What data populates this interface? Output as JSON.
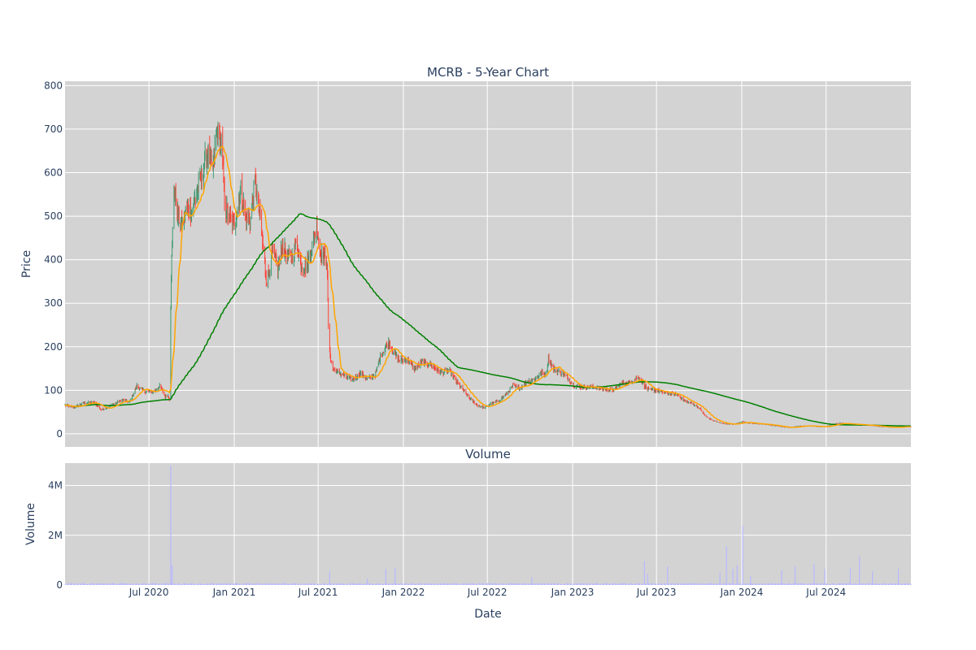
{
  "chart_data": [
    {
      "type": "candlestick",
      "title": "MCRB - 5-Year Chart",
      "ylabel": "Price",
      "ylim": [
        -30,
        810
      ],
      "yticks": [
        0,
        100,
        200,
        300,
        400,
        500,
        600,
        700,
        800
      ],
      "colors": {
        "up": "#3d9970",
        "down": "#ff4136",
        "ma_short": "#ffa500",
        "ma_long": "#008000",
        "plot_bg": "#d3d3d3",
        "grid": "#ffffff"
      },
      "series_keypoints": {
        "close": [
          [
            "2020-01-02",
            66
          ],
          [
            "2020-01-20",
            60
          ],
          [
            "2020-02-10",
            70
          ],
          [
            "2020-03-05",
            72
          ],
          [
            "2020-03-20",
            55
          ],
          [
            "2020-04-10",
            65
          ],
          [
            "2020-05-05",
            78
          ],
          [
            "2020-05-20",
            72
          ],
          [
            "2020-06-05",
            110
          ],
          [
            "2020-06-20",
            98
          ],
          [
            "2020-07-05",
            95
          ],
          [
            "2020-07-15",
            100
          ],
          [
            "2020-07-25",
            110
          ],
          [
            "2020-08-05",
            85
          ],
          [
            "2020-08-10",
            90
          ],
          [
            "2020-08-14",
            80
          ],
          [
            "2020-08-18",
            370
          ],
          [
            "2020-08-24",
            560
          ],
          [
            "2020-09-02",
            500
          ],
          [
            "2020-09-10",
            475
          ],
          [
            "2020-09-20",
            520
          ],
          [
            "2020-10-01",
            510
          ],
          [
            "2020-10-10",
            545
          ],
          [
            "2020-10-25",
            600
          ],
          [
            "2020-11-05",
            650
          ],
          [
            "2020-11-15",
            600
          ],
          [
            "2020-11-25",
            700
          ],
          [
            "2020-12-05",
            660
          ],
          [
            "2020-12-12",
            520
          ],
          [
            "2020-12-20",
            500
          ],
          [
            "2021-01-01",
            480
          ],
          [
            "2021-01-15",
            560
          ],
          [
            "2021-01-25",
            500
          ],
          [
            "2021-02-05",
            490
          ],
          [
            "2021-02-15",
            580
          ],
          [
            "2021-02-25",
            500
          ],
          [
            "2021-03-05",
            420
          ],
          [
            "2021-03-12",
            350
          ],
          [
            "2021-03-25",
            420
          ],
          [
            "2021-04-05",
            380
          ],
          [
            "2021-04-15",
            430
          ],
          [
            "2021-04-25",
            410
          ],
          [
            "2021-05-05",
            400
          ],
          [
            "2021-05-15",
            440
          ],
          [
            "2021-05-25",
            390
          ],
          [
            "2021-06-05",
            380
          ],
          [
            "2021-06-15",
            420
          ],
          [
            "2021-06-28",
            480
          ],
          [
            "2021-07-05",
            420
          ],
          [
            "2021-07-15",
            410
          ],
          [
            "2021-07-20",
            400
          ],
          [
            "2021-07-24",
            200
          ],
          [
            "2021-08-01",
            150
          ],
          [
            "2021-08-15",
            140
          ],
          [
            "2021-09-01",
            130
          ],
          [
            "2021-09-15",
            125
          ],
          [
            "2021-10-01",
            140
          ],
          [
            "2021-10-15",
            125
          ],
          [
            "2021-11-01",
            135
          ],
          [
            "2021-11-15",
            185
          ],
          [
            "2021-12-01",
            210
          ],
          [
            "2021-12-10",
            190
          ],
          [
            "2021-12-20",
            170
          ],
          [
            "2022-01-10",
            170
          ],
          [
            "2022-01-25",
            150
          ],
          [
            "2022-02-10",
            165
          ],
          [
            "2022-02-25",
            160
          ],
          [
            "2022-03-10",
            150
          ],
          [
            "2022-03-25",
            140
          ],
          [
            "2022-04-10",
            145
          ],
          [
            "2022-04-25",
            120
          ],
          [
            "2022-05-10",
            100
          ],
          [
            "2022-05-25",
            80
          ],
          [
            "2022-06-10",
            65
          ],
          [
            "2022-06-25",
            60
          ],
          [
            "2022-07-10",
            70
          ],
          [
            "2022-07-25",
            75
          ],
          [
            "2022-08-10",
            90
          ],
          [
            "2022-08-25",
            110
          ],
          [
            "2022-09-10",
            105
          ],
          [
            "2022-09-25",
            120
          ],
          [
            "2022-10-10",
            125
          ],
          [
            "2022-10-25",
            140
          ],
          [
            "2022-11-05",
            135
          ],
          [
            "2022-11-10",
            175
          ],
          [
            "2022-11-20",
            150
          ],
          [
            "2022-12-05",
            140
          ],
          [
            "2022-12-20",
            130
          ],
          [
            "2023-01-05",
            110
          ],
          [
            "2023-01-20",
            108
          ],
          [
            "2023-02-10",
            108
          ],
          [
            "2023-02-25",
            105
          ],
          [
            "2023-03-15",
            102
          ],
          [
            "2023-03-30",
            100
          ],
          [
            "2023-04-15",
            115
          ],
          [
            "2023-04-30",
            118
          ],
          [
            "2023-05-15",
            125
          ],
          [
            "2023-05-25",
            130
          ],
          [
            "2023-06-05",
            110
          ],
          [
            "2023-06-15",
            100
          ],
          [
            "2023-07-01",
            100
          ],
          [
            "2023-07-15",
            95
          ],
          [
            "2023-08-01",
            92
          ],
          [
            "2023-08-15",
            90
          ],
          [
            "2023-09-01",
            75
          ],
          [
            "2023-09-15",
            70
          ],
          [
            "2023-10-01",
            60
          ],
          [
            "2023-10-15",
            40
          ],
          [
            "2023-11-01",
            30
          ],
          [
            "2023-11-15",
            25
          ],
          [
            "2023-12-01",
            22
          ],
          [
            "2023-12-15",
            22
          ],
          [
            "2024-01-01",
            28
          ],
          [
            "2024-01-15",
            25
          ],
          [
            "2024-02-01",
            23
          ],
          [
            "2024-02-15",
            22
          ],
          [
            "2024-03-01",
            20
          ],
          [
            "2024-03-15",
            18
          ],
          [
            "2024-04-01",
            15
          ],
          [
            "2024-04-15",
            14
          ],
          [
            "2024-05-01",
            18
          ],
          [
            "2024-05-15",
            18
          ],
          [
            "2024-06-01",
            18
          ],
          [
            "2024-06-15",
            16
          ],
          [
            "2024-07-01",
            17
          ],
          [
            "2024-07-15",
            22
          ],
          [
            "2024-08-01",
            25
          ],
          [
            "2024-08-15",
            22
          ],
          [
            "2024-09-01",
            22
          ],
          [
            "2024-09-15",
            20
          ],
          [
            "2024-10-01",
            20
          ],
          [
            "2024-10-15",
            18
          ],
          [
            "2024-11-01",
            16
          ],
          [
            "2024-11-15",
            15
          ],
          [
            "2024-12-01",
            15
          ],
          [
            "2024-12-15",
            17
          ],
          [
            "2024-12-31",
            16
          ]
        ]
      }
    },
    {
      "type": "bar",
      "title": "Volume",
      "xlabel": "Date",
      "ylabel": "Volume",
      "xlim": [
        "2020-01-02",
        "2024-12-31"
      ],
      "ylim": [
        0,
        4900000
      ],
      "yticks": [
        0,
        2000000,
        4000000
      ],
      "ytick_labels": [
        "0",
        "2M",
        "4M"
      ],
      "xticks": [
        "2020-07-01",
        "2021-01-01",
        "2021-07-01",
        "2022-01-01",
        "2022-07-01",
        "2023-01-01",
        "2023-07-01",
        "2024-01-01",
        "2024-07-01"
      ],
      "xtick_labels": [
        "Jul 2020",
        "Jan 2021",
        "Jul 2021",
        "Jan 2022",
        "Jul 2022",
        "Jan 2023",
        "Jul 2023",
        "Jan 2024",
        "Jul 2024"
      ],
      "colors": {
        "bar": "#b8b8ff",
        "plot_bg": "#d3d3d3",
        "grid": "#ffffff"
      },
      "spikes": [
        [
          "2020-08-17",
          4800000
        ],
        [
          "2020-08-20",
          800000
        ],
        [
          "2021-07-26",
          550000
        ],
        [
          "2021-10-15",
          250000
        ],
        [
          "2021-11-24",
          650000
        ],
        [
          "2021-12-14",
          700000
        ],
        [
          "2022-10-05",
          300000
        ],
        [
          "2023-06-05",
          950000
        ],
        [
          "2023-06-12",
          450000
        ],
        [
          "2023-07-25",
          750000
        ],
        [
          "2023-11-15",
          500000
        ],
        [
          "2023-11-29",
          1550000
        ],
        [
          "2023-12-13",
          650000
        ],
        [
          "2023-12-22",
          800000
        ],
        [
          "2024-01-03",
          2400000
        ],
        [
          "2024-01-20",
          350000
        ],
        [
          "2024-03-27",
          600000
        ],
        [
          "2024-04-25",
          750000
        ],
        [
          "2024-06-05",
          850000
        ],
        [
          "2024-06-28",
          650000
        ],
        [
          "2024-08-22",
          700000
        ],
        [
          "2024-09-11",
          1150000
        ],
        [
          "2024-10-09",
          550000
        ],
        [
          "2024-12-04",
          650000
        ]
      ]
    }
  ]
}
